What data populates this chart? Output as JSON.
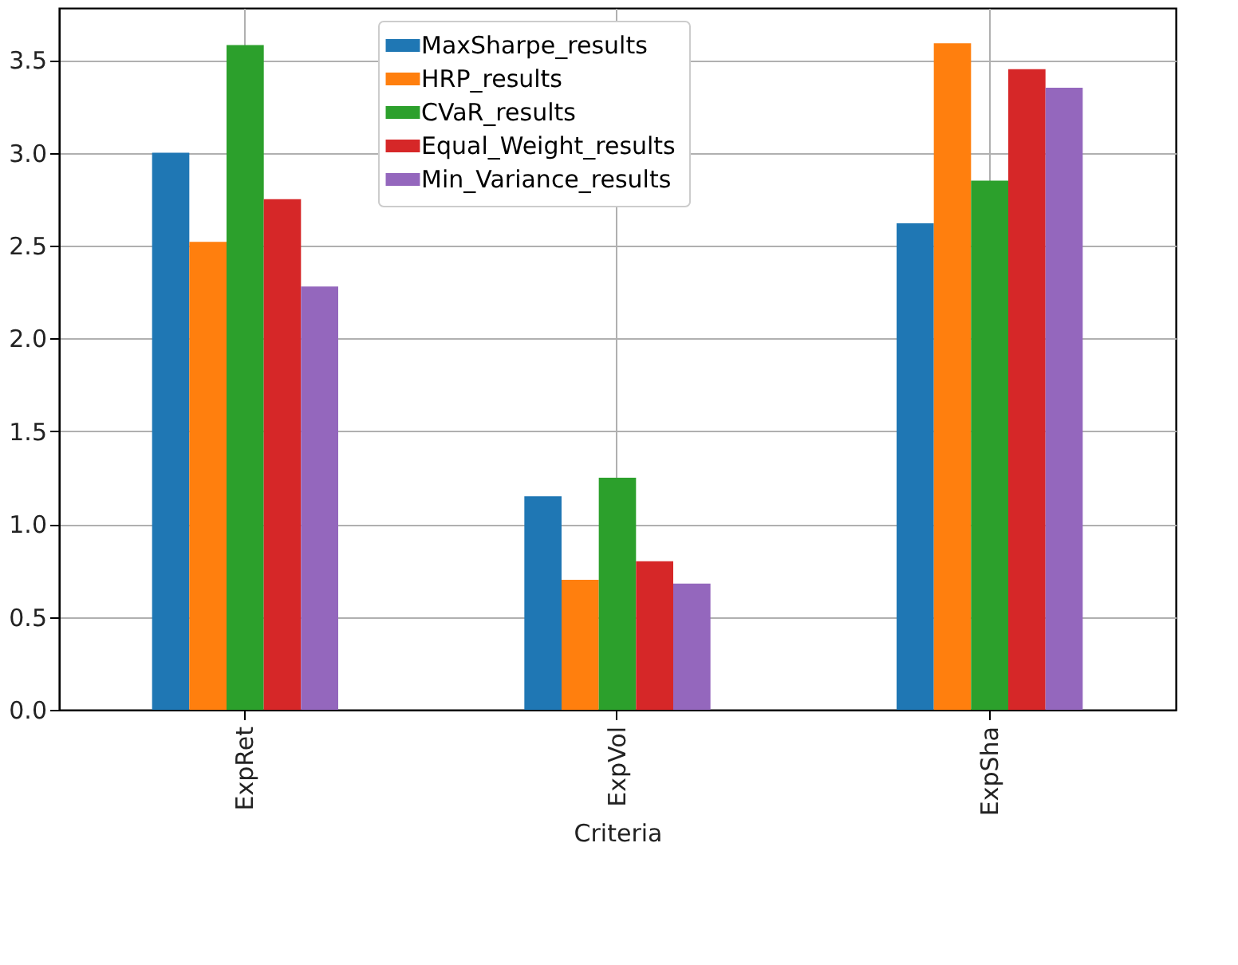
{
  "chart_data": {
    "type": "bar",
    "xlabel": "Criteria",
    "categories": [
      "ExpRet",
      "ExpVol",
      "ExpSha"
    ],
    "series": [
      {
        "name": "MaxSharpe_results",
        "color": "#1f77b4",
        "values": [
          3.0,
          1.15,
          2.62
        ]
      },
      {
        "name": "HRP_results",
        "color": "#ff7f0e",
        "values": [
          2.52,
          0.7,
          3.59
        ]
      },
      {
        "name": "CVaR_results",
        "color": "#2ca02c",
        "values": [
          3.58,
          1.25,
          2.85
        ]
      },
      {
        "name": "Equal_Weight_results",
        "color": "#d62728",
        "values": [
          2.75,
          0.8,
          3.45
        ]
      },
      {
        "name": "Min_Variance_results",
        "color": "#9467bd",
        "values": [
          2.28,
          0.68,
          3.35
        ]
      }
    ],
    "ylim": [
      0,
      3.78
    ],
    "yticks": [
      {
        "value": 0,
        "label": "0.0"
      },
      0.5,
      {
        "value": 1,
        "label": "1.0"
      },
      1.5,
      {
        "value": 2,
        "label": "2.0"
      },
      2.5,
      {
        "value": 3,
        "label": "3.0"
      },
      3.5
    ],
    "grid": true,
    "legend": "top"
  }
}
